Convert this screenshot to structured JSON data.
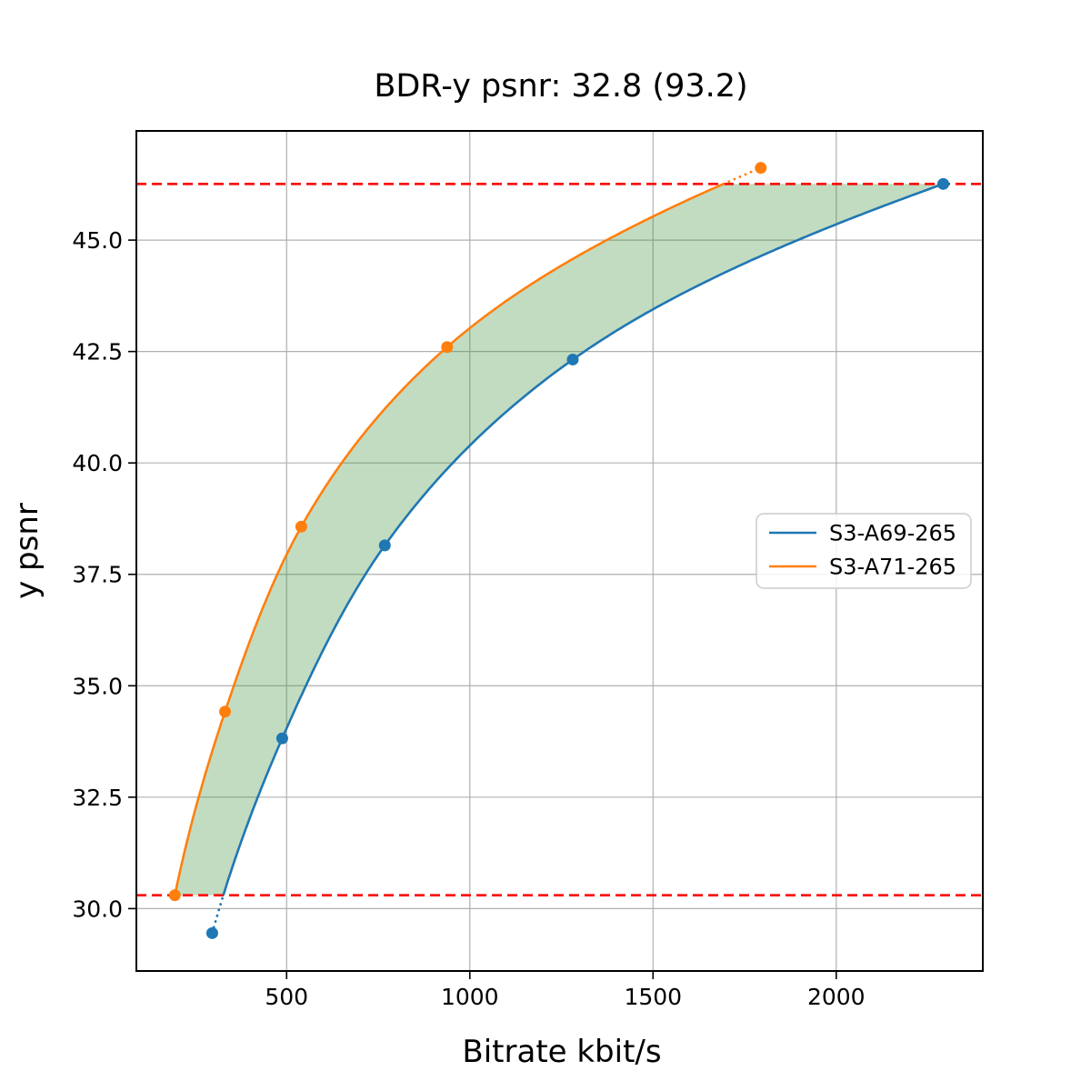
{
  "chart_data": {
    "type": "line",
    "title": "BDR-y psnr: 32.8 (93.2)",
    "xlabel": "Bitrate kbit/s",
    "ylabel": "y psnr",
    "xlim": [
      90,
      2400
    ],
    "ylim": [
      28.6,
      47.45
    ],
    "xticks": [
      500,
      1000,
      1500,
      2000
    ],
    "yticks": [
      30.0,
      32.5,
      35.0,
      37.5,
      40.0,
      42.5,
      45.0
    ],
    "grid": true,
    "grid_color": "#b0b0b0",
    "legend_position": "center-right",
    "series": [
      {
        "name": "S3-A69-265",
        "color": "#1f77b4",
        "x": [
          297,
          488,
          768,
          1281,
          2292
        ],
        "y": [
          29.45,
          33.82,
          38.15,
          42.32,
          46.26
        ]
      },
      {
        "name": "S3-A71-265",
        "color": "#ff7f0e",
        "x": [
          195,
          332,
          540,
          938,
          1794
        ],
        "y": [
          30.3,
          34.42,
          38.57,
          42.6,
          46.62
        ]
      }
    ],
    "overlap_band": {
      "ymin": 30.3,
      "ymax": 46.26,
      "ref_line_color": "#ff0000",
      "ref_line_style": "dashed",
      "fill_color": "#348c31",
      "fill_opacity": 0.3
    },
    "annotations": {
      "bd_psnr": "32.8",
      "bd_rate_pct": "93.2"
    }
  }
}
